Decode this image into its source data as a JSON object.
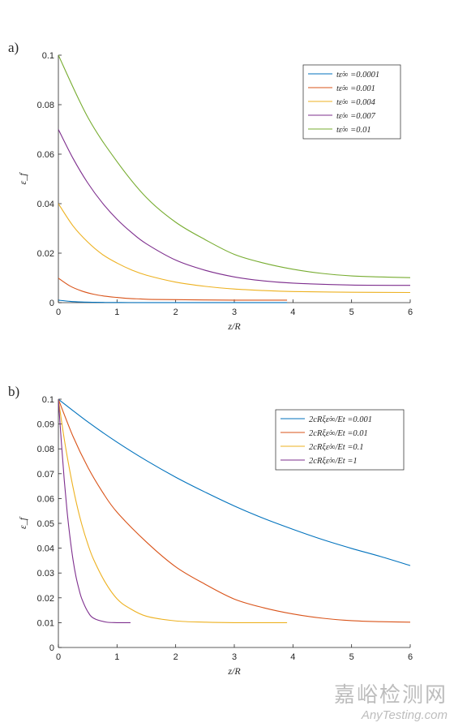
{
  "chart_data": [
    {
      "type": "line",
      "panel_label": "a)",
      "xlabel": "z/R",
      "ylabel": "ε_f",
      "xlim": [
        0,
        6
      ],
      "ylim": [
        0,
        0.1
      ],
      "xticks": [
        0,
        1,
        2,
        3,
        4,
        5,
        6
      ],
      "yticks": [
        0,
        0.02,
        0.04,
        0.06,
        0.08,
        0.1
      ],
      "ytick_labels": [
        "0",
        "0.02",
        "0.04",
        "0.06",
        "0.08",
        "0.1"
      ],
      "legend_position": "top-right",
      "series": [
        {
          "name": "tε̇∞ =0.0001",
          "legend_label": "tε̇∞ =0.0001",
          "color": "#0072BD",
          "x": [
            0,
            0.2,
            0.4,
            0.6,
            0.8,
            1.0,
            1.2,
            1.6,
            2.0,
            3.0,
            3.9
          ],
          "y": [
            0.001,
            0.00051,
            0.00026,
            0.00014,
            8e-05,
            5e-05,
            4e-05,
            2e-05,
            2e-05,
            1e-05,
            1e-05
          ]
        },
        {
          "name": "tε̇∞ =0.001",
          "legend_label": "tε̇∞ =0.001",
          "color": "#D95319",
          "x": [
            0,
            0.2,
            0.4,
            0.6,
            0.8,
            1.0,
            1.2,
            1.4,
            1.6,
            2.0,
            2.5,
            3.0,
            3.5,
            3.9
          ],
          "y": [
            0.0099,
            0.0067,
            0.0047,
            0.0034,
            0.0026,
            0.0021,
            0.0017,
            0.0015,
            0.0013,
            0.0012,
            0.0011,
            0.001,
            0.001,
            0.001
          ]
        },
        {
          "name": "tε̇∞ =0.004",
          "legend_label": "tε̇∞ =0.004",
          "color": "#EDB120",
          "x": [
            0,
            0.25,
            0.5,
            0.75,
            1.0,
            1.25,
            1.5,
            2.0,
            2.5,
            3.0,
            3.5,
            4.0,
            5.0,
            6.0
          ],
          "y": [
            0.04,
            0.031,
            0.0245,
            0.0195,
            0.016,
            0.0132,
            0.0111,
            0.0083,
            0.0066,
            0.0055,
            0.0049,
            0.0045,
            0.0042,
            0.0041
          ]
        },
        {
          "name": "tε̇∞ =0.007",
          "legend_label": "tε̇∞ =0.007",
          "color": "#7E2F8E",
          "x": [
            0,
            0.25,
            0.5,
            0.75,
            1.0,
            1.25,
            1.5,
            2.0,
            2.5,
            3.0,
            3.5,
            4.0,
            5.0,
            6.0
          ],
          "y": [
            0.07,
            0.0583,
            0.0484,
            0.0403,
            0.0337,
            0.0283,
            0.0238,
            0.0172,
            0.0131,
            0.0104,
            0.0088,
            0.0079,
            0.0071,
            0.007
          ]
        },
        {
          "name": "tε̇∞ =0.01",
          "legend_label": "tε̇∞ =0.01",
          "color": "#77AC30",
          "x": [
            0,
            0.5,
            1.0,
            1.5,
            2.0,
            2.5,
            3.0,
            3.5,
            4.0,
            4.5,
            5.0,
            5.5,
            6.0
          ],
          "y": [
            0.1,
            0.075,
            0.057,
            0.0425,
            0.0325,
            0.0255,
            0.0195,
            0.016,
            0.0135,
            0.0118,
            0.0108,
            0.0104,
            0.0101
          ]
        }
      ]
    },
    {
      "type": "line",
      "panel_label": "b)",
      "xlabel": "z/R",
      "ylabel": "ε_f",
      "xlim": [
        0,
        6
      ],
      "ylim": [
        0,
        0.1
      ],
      "xticks": [
        0,
        1,
        2,
        3,
        4,
        5,
        6
      ],
      "yticks": [
        0,
        0.01,
        0.02,
        0.03,
        0.04,
        0.05,
        0.06,
        0.07,
        0.08,
        0.09,
        0.1
      ],
      "ytick_labels": [
        "0",
        "0.01",
        "0.02",
        "0.03",
        "0.04",
        "0.05",
        "0.06",
        "0.07",
        "0.08",
        "0.09",
        "0.1"
      ],
      "legend_position": "top-right",
      "series": [
        {
          "name": "2cRξε̇∞/E_t =0.001",
          "legend_label": "2cRξε̇∞/Et =0.001",
          "color": "#0072BD",
          "x": [
            0,
            0.5,
            1.0,
            1.5,
            2.0,
            2.5,
            3.0,
            3.5,
            4.0,
            4.5,
            5.0,
            5.5,
            6.0
          ],
          "y": [
            0.1,
            0.0909,
            0.0827,
            0.0753,
            0.0686,
            0.0626,
            0.057,
            0.052,
            0.0476,
            0.0435,
            0.0399,
            0.0366,
            0.033
          ]
        },
        {
          "name": "2cRξε̇∞/E_t =0.01",
          "legend_label": "2cRξε̇∞/Et =0.01",
          "color": "#D95319",
          "x": [
            0,
            0.25,
            0.5,
            0.75,
            1.0,
            1.5,
            2.0,
            2.5,
            3.0,
            3.5,
            4.0,
            4.5,
            5.0,
            5.5,
            6.0
          ],
          "y": [
            0.1,
            0.085,
            0.0727,
            0.0627,
            0.0545,
            0.0425,
            0.0325,
            0.0255,
            0.0195,
            0.016,
            0.0135,
            0.0118,
            0.0108,
            0.0104,
            0.0102
          ]
        },
        {
          "name": "2cRξε̇∞/E_t =0.1",
          "legend_label": "2cRξε̇∞/Et =0.1",
          "color": "#EDB120",
          "x": [
            0,
            0.1,
            0.2,
            0.3,
            0.4,
            0.5,
            0.6,
            0.8,
            1.0,
            1.2,
            1.5,
            2.0,
            2.5,
            3.0,
            3.9
          ],
          "y": [
            0.1,
            0.084,
            0.0705,
            0.059,
            0.0495,
            0.0418,
            0.0355,
            0.0262,
            0.0196,
            0.016,
            0.0126,
            0.0107,
            0.0102,
            0.01,
            0.01
          ]
        },
        {
          "name": "2cRξε̇∞/E_t =1",
          "legend_label": "2cRξε̇∞/Et =1",
          "color": "#7E2F8E",
          "x": [
            0,
            0.05,
            0.1,
            0.15,
            0.2,
            0.25,
            0.3,
            0.35,
            0.4,
            0.5,
            0.6,
            0.8,
            1.0,
            1.23
          ],
          "y": [
            0.1,
            0.083,
            0.0675,
            0.0545,
            0.044,
            0.0353,
            0.0286,
            0.0236,
            0.0196,
            0.0145,
            0.0118,
            0.0103,
            0.01,
            0.01
          ]
        }
      ]
    }
  ],
  "watermark": {
    "chinese": "嘉峪检测网",
    "english": "AnyTesting.com"
  }
}
